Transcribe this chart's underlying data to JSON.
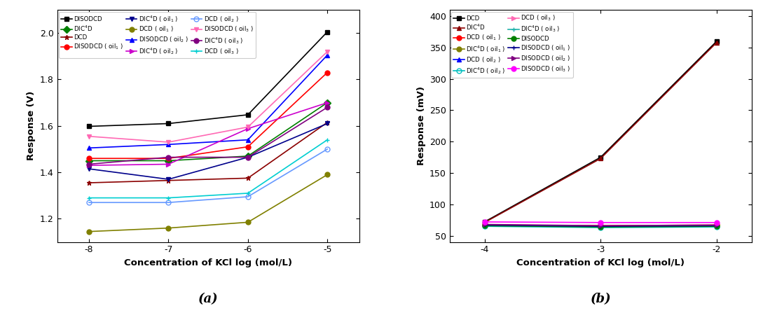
{
  "panel_a": {
    "x": [
      -8,
      -7,
      -6,
      -5
    ],
    "series": [
      {
        "label": "DISODCD",
        "color": "#000000",
        "marker": "s",
        "mfc": "black",
        "values": [
          1.598,
          1.61,
          1.648,
          2.005
        ]
      },
      {
        "label": "DIC$^4$D",
        "color": "#008000",
        "marker": "D",
        "mfc": "#008000",
        "values": [
          1.45,
          1.45,
          1.47,
          1.7
        ]
      },
      {
        "label": "DCD",
        "color": "#8B0000",
        "marker": "*",
        "mfc": "#8B0000",
        "values": [
          1.355,
          1.365,
          1.375,
          1.615
        ]
      },
      {
        "label": "DISODCD ( oil$_1$ )",
        "color": "#FF0000",
        "marker": "o",
        "mfc": "#FF0000",
        "values": [
          1.46,
          1.46,
          1.51,
          1.83
        ]
      },
      {
        "label": "DIC$^4$D ( oil$_1$ )",
        "color": "#00008B",
        "marker": "v",
        "mfc": "#00008B",
        "values": [
          1.415,
          1.37,
          1.465,
          1.61
        ]
      },
      {
        "label": "DCD ( oil$_1$ )",
        "color": "#808000",
        "marker": "o",
        "mfc": "#808000",
        "values": [
          1.145,
          1.16,
          1.185,
          1.39
        ]
      },
      {
        "label": "DISODCD ( oil$_2$ )",
        "color": "#0000FF",
        "marker": "^",
        "mfc": "#0000FF",
        "values": [
          1.505,
          1.52,
          1.54,
          1.905
        ]
      },
      {
        "label": "DIC$^4$D ( oil$_2$ )",
        "color": "#CC00CC",
        "marker": ">",
        "mfc": "#CC00CC",
        "values": [
          1.43,
          1.435,
          1.588,
          1.7
        ]
      },
      {
        "label": "DCD ( oil$_2$ )",
        "color": "#6699FF",
        "marker": "o",
        "mfc": "none",
        "values": [
          1.27,
          1.27,
          1.295,
          1.5
        ]
      },
      {
        "label": "DISODCD ( oil$_3$ )",
        "color": "#FF69B4",
        "marker": "v",
        "mfc": "#FF69B4",
        "values": [
          1.555,
          1.53,
          1.595,
          1.92
        ]
      },
      {
        "label": "DIC$^4$D ( oil$_3$ )",
        "color": "#800080",
        "marker": "o",
        "mfc": "#800080",
        "values": [
          1.435,
          1.465,
          1.465,
          1.68
        ]
      },
      {
        "label": "DCD ( oil$_3$ )",
        "color": "#00CED1",
        "marker": "+",
        "mfc": "#00CED1",
        "values": [
          1.29,
          1.29,
          1.31,
          1.54
        ]
      }
    ],
    "xlabel": "Concentration of KCl log (mol/L)",
    "ylabel": "Response (V)",
    "xlim": [
      -8.4,
      -4.6
    ],
    "ylim": [
      1.1,
      2.1
    ],
    "xticks": [
      -8,
      -7,
      -6,
      -5
    ],
    "yticks": [
      1.2,
      1.4,
      1.6,
      1.8,
      2.0
    ],
    "label": "(a)"
  },
  "panel_b": {
    "x": [
      -4,
      -3,
      -2
    ],
    "series": [
      {
        "label": "DCD",
        "color": "#000000",
        "marker": "s",
        "mfc": "black",
        "values": [
          72,
          175,
          360
        ]
      },
      {
        "label": "DIC$^4$D",
        "color": "#8B0000",
        "marker": "^",
        "mfc": "#8B0000",
        "values": [
          71,
          173,
          358
        ]
      },
      {
        "label": "DCD ( oil$_1$ )",
        "color": "#FF0000",
        "marker": "o",
        "mfc": "#FF0000",
        "values": [
          67,
          66,
          67
        ]
      },
      {
        "label": "DIC$^4$D ( oil$_1$ )",
        "color": "#808000",
        "marker": "o",
        "mfc": "#808000",
        "values": [
          66,
          65,
          66
        ]
      },
      {
        "label": "DCD ( oil$_2$ )",
        "color": "#0000FF",
        "marker": "^",
        "mfc": "#0000FF",
        "values": [
          66,
          64,
          65
        ]
      },
      {
        "label": "DIC$^4$D ( oil$_2$ )",
        "color": "#00BFBF",
        "marker": "o",
        "mfc": "none",
        "values": [
          65,
          63,
          64
        ]
      },
      {
        "label": "DCD ( oil$_3$ )",
        "color": "#FF69B4",
        "marker": ">",
        "mfc": "#FF69B4",
        "values": [
          67,
          65,
          66
        ]
      },
      {
        "label": "DIC$^4$D ( oil$_3$ )",
        "color": "#20B2AA",
        "marker": "+",
        "mfc": "#20B2AA",
        "values": [
          66,
          64,
          65
        ]
      },
      {
        "label": "DISODCD",
        "color": "#008000",
        "marker": "o",
        "mfc": "#008000",
        "values": [
          66,
          64,
          65
        ]
      },
      {
        "label": "DISODCD ( oil$_1$ )",
        "color": "#00008B",
        "marker": "+",
        "mfc": "#00008B",
        "values": [
          67,
          65,
          66
        ]
      },
      {
        "label": "DISODCD ( oil$_2$ )",
        "color": "#800080",
        "marker": ">",
        "mfc": "#800080",
        "values": [
          68,
          66,
          67
        ]
      },
      {
        "label": "DISODCD ( oil$_3$ )",
        "color": "#FF00FF",
        "marker": "o",
        "mfc": "#FF00FF",
        "values": [
          72,
          71,
          71
        ]
      }
    ],
    "xlabel": "Concentration of KCl log (mol/L)",
    "ylabel": "Response (mV)",
    "xlim": [
      -4.3,
      -1.7
    ],
    "ylim": [
      40,
      410
    ],
    "xticks": [
      -4,
      -3,
      -2
    ],
    "yticks": [
      50,
      100,
      150,
      200,
      250,
      300,
      350,
      400
    ],
    "label": "(b)"
  }
}
